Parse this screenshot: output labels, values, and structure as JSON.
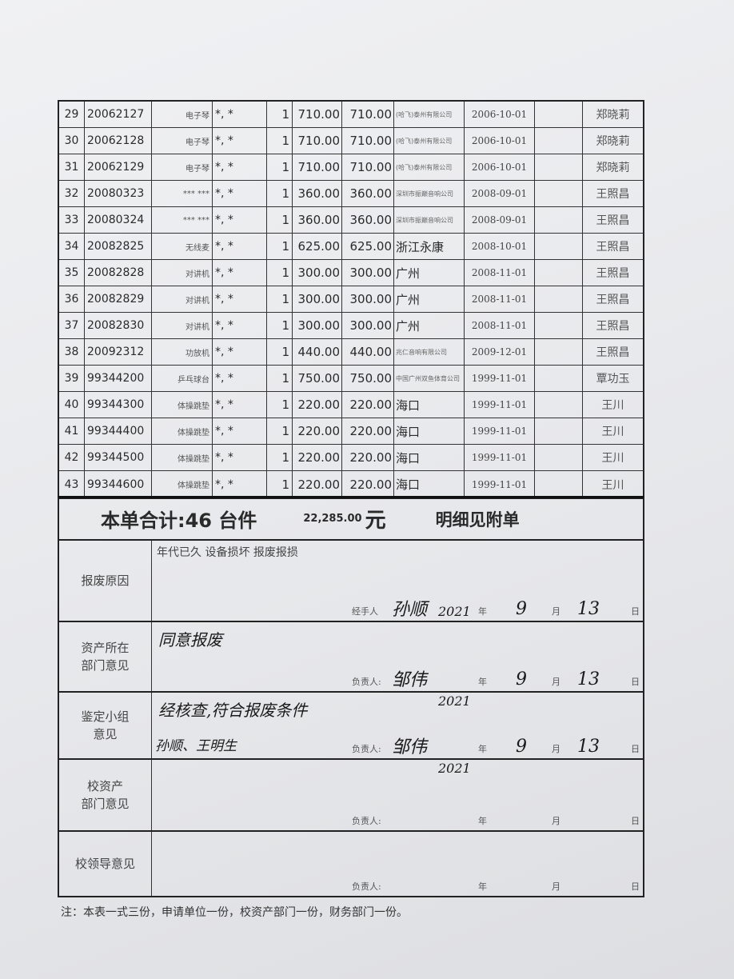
{
  "table": {
    "rows": [
      {
        "no": "29",
        "code": "20062127",
        "name": "电子琴",
        "spec": "*, *",
        "qty": "1",
        "price": "710.00",
        "amount": "710.00",
        "supplier": "(哈飞)泰州有限公司",
        "supplier_small": true,
        "date": "2006-10-01",
        "person": "郑晓莉"
      },
      {
        "no": "30",
        "code": "20062128",
        "name": "电子琴",
        "spec": "*, *",
        "qty": "1",
        "price": "710.00",
        "amount": "710.00",
        "supplier": "(哈飞)泰州有限公司",
        "supplier_small": true,
        "date": "2006-10-01",
        "person": "郑晓莉"
      },
      {
        "no": "31",
        "code": "20062129",
        "name": "电子琴",
        "spec": "*, *",
        "qty": "1",
        "price": "710.00",
        "amount": "710.00",
        "supplier": "(哈飞)泰州有限公司",
        "supplier_small": true,
        "date": "2006-10-01",
        "person": "郑晓莉"
      },
      {
        "no": "32",
        "code": "20080323",
        "name": "*** ***",
        "spec": "*, *",
        "qty": "1",
        "price": "360.00",
        "amount": "360.00",
        "supplier": "深圳市振巅音响公司",
        "supplier_small": true,
        "date": "2008-09-01",
        "person": "王照昌"
      },
      {
        "no": "33",
        "code": "20080324",
        "name": "*** ***",
        "spec": "*, *",
        "qty": "1",
        "price": "360.00",
        "amount": "360.00",
        "supplier": "深圳市振巅音响公司",
        "supplier_small": true,
        "date": "2008-09-01",
        "person": "王照昌"
      },
      {
        "no": "34",
        "code": "20082825",
        "name": "无线麦",
        "spec": "*, *",
        "qty": "1",
        "price": "625.00",
        "amount": "625.00",
        "supplier": "浙江永康",
        "supplier_small": false,
        "date": "2008-10-01",
        "person": "王照昌"
      },
      {
        "no": "35",
        "code": "20082828",
        "name": "对讲机",
        "spec": "*, *",
        "qty": "1",
        "price": "300.00",
        "amount": "300.00",
        "supplier": "广州",
        "supplier_small": false,
        "date": "2008-11-01",
        "person": "王照昌"
      },
      {
        "no": "36",
        "code": "20082829",
        "name": "对讲机",
        "spec": "*, *",
        "qty": "1",
        "price": "300.00",
        "amount": "300.00",
        "supplier": "广州",
        "supplier_small": false,
        "date": "2008-11-01",
        "person": "王照昌"
      },
      {
        "no": "37",
        "code": "20082830",
        "name": "对讲机",
        "spec": "*, *",
        "qty": "1",
        "price": "300.00",
        "amount": "300.00",
        "supplier": "广州",
        "supplier_small": false,
        "date": "2008-11-01",
        "person": "王照昌"
      },
      {
        "no": "38",
        "code": "20092312",
        "name": "功放机",
        "spec": "*, *",
        "qty": "1",
        "price": "440.00",
        "amount": "440.00",
        "supplier": "兆仁音响有限公司",
        "supplier_small": true,
        "date": "2009-12-01",
        "person": "王照昌"
      },
      {
        "no": "39",
        "code": "99344200",
        "name": "乒乓球台",
        "spec": "*, *",
        "qty": "1",
        "price": "750.00",
        "amount": "750.00",
        "supplier": "中国广州双鱼体育公司",
        "supplier_small": true,
        "date": "1999-11-01",
        "person": "覃功玉"
      },
      {
        "no": "40",
        "code": "99344300",
        "name": "体操跳垫",
        "spec": "*, *",
        "qty": "1",
        "price": "220.00",
        "amount": "220.00",
        "supplier": "海口",
        "supplier_small": false,
        "date": "1999-11-01",
        "person": "王川"
      },
      {
        "no": "41",
        "code": "99344400",
        "name": "体操跳垫",
        "spec": "*, *",
        "qty": "1",
        "price": "220.00",
        "amount": "220.00",
        "supplier": "海口",
        "supplier_small": false,
        "date": "1999-11-01",
        "person": "王川"
      },
      {
        "no": "42",
        "code": "99344500",
        "name": "体操跳垫",
        "spec": "*, *",
        "qty": "1",
        "price": "220.00",
        "amount": "220.00",
        "supplier": "海口",
        "supplier_small": false,
        "date": "1999-11-01",
        "person": "王川"
      },
      {
        "no": "43",
        "code": "99344600",
        "name": "体操跳垫",
        "spec": "*, *",
        "qty": "1",
        "price": "220.00",
        "amount": "220.00",
        "supplier": "海口",
        "supplier_small": false,
        "date": "1999-11-01",
        "person": "王川"
      }
    ]
  },
  "summary": {
    "total_label": "本单合计:46 台件",
    "amount": "22,285.00",
    "currency": "元",
    "note": "明细见附单"
  },
  "sections": [
    {
      "label": "报废原因",
      "printed": "年代已久 设备损坏 报废报损",
      "handwritten": "",
      "signer_label": "经手人",
      "signature": "孙顺",
      "year": "2021",
      "month": "9",
      "day": "13",
      "year_label": "年",
      "month_label": "月",
      "day_label": "日"
    },
    {
      "label": "资产所在\n部门意见",
      "printed": "",
      "handwritten": "同意报废",
      "signer_label": "负责人:",
      "signature": "邹伟",
      "year": "2021",
      "month": "9",
      "day": "13",
      "year_label": "年",
      "month_label": "月",
      "day_label": "日"
    },
    {
      "label": "鉴定小组\n意见",
      "printed": "",
      "handwritten": "经核查,符合报废条件",
      "handwritten2": "孙顺、王明生",
      "signer_label": "负责人:",
      "signature": "邹伟",
      "year": "2021",
      "month": "9",
      "day": "13",
      "year_label": "年",
      "month_label": "月",
      "day_label": "日"
    },
    {
      "label": "校资产\n部门意见",
      "printed": "",
      "handwritten": "",
      "signer_label": "负责人:",
      "signature": "",
      "year": "",
      "month": "",
      "day": "",
      "year_label": "年",
      "month_label": "月",
      "day_label": "日"
    },
    {
      "label": "校领导意见",
      "printed": "",
      "handwritten": "",
      "signer_label": "负责人:",
      "signature": "",
      "year": "",
      "month": "",
      "day": "",
      "year_label": "年",
      "month_label": "月",
      "day_label": "日"
    }
  ],
  "footer_note": "注：本表一式三份，申请单位一份，校资产部门一份，财务部门一份。"
}
